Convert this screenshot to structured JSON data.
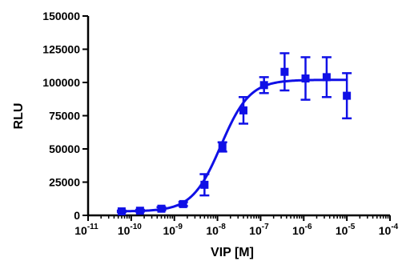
{
  "chart_data": {
    "type": "scatter",
    "xlabel": "VIP [M]",
    "ylabel": "RLU",
    "xscale": "log10",
    "xlim": [
      1e-11,
      0.0001
    ],
    "ylim": [
      0,
      150000
    ],
    "x_ticks": [
      {
        "base": "10",
        "exp": "-11"
      },
      {
        "base": "10",
        "exp": "-10"
      },
      {
        "base": "10",
        "exp": "-9"
      },
      {
        "base": "10",
        "exp": "-8"
      },
      {
        "base": "10",
        "exp": "-7"
      },
      {
        "base": "10",
        "exp": "-6"
      },
      {
        "base": "10",
        "exp": "-5"
      },
      {
        "base": "10",
        "exp": "-4"
      }
    ],
    "y_ticks": [
      "0",
      "25000",
      "50000",
      "75000",
      "100000",
      "125000",
      "150000"
    ],
    "color": "#1010e6",
    "series": [
      {
        "points": [
          {
            "x": 6e-11,
            "y": 3000,
            "err": 600
          },
          {
            "x": 1.6e-10,
            "y": 3500,
            "err": 700
          },
          {
            "x": 5e-10,
            "y": 5000,
            "err": 1200
          },
          {
            "x": 1.6e-09,
            "y": 8500,
            "err": 1500
          },
          {
            "x": 5e-09,
            "y": 23000,
            "err": 8000
          },
          {
            "x": 1.3e-08,
            "y": 51500,
            "err": 3500
          },
          {
            "x": 4e-08,
            "y": 79000,
            "err": 10000
          },
          {
            "x": 1.2e-07,
            "y": 98000,
            "err": 6000
          },
          {
            "x": 3.6e-07,
            "y": 108000,
            "err": 14000
          },
          {
            "x": 1.1e-06,
            "y": 103000,
            "err": 16000
          },
          {
            "x": 3.4e-06,
            "y": 104000,
            "err": 15000
          },
          {
            "x": 1e-05,
            "y": 90000,
            "err": 17000
          }
        ],
        "fit": {
          "model": "sigmoidal dose-response",
          "bottom": 3000,
          "top": 102000,
          "log_ec50": -7.92,
          "hill": 1.3
        }
      }
    ]
  }
}
